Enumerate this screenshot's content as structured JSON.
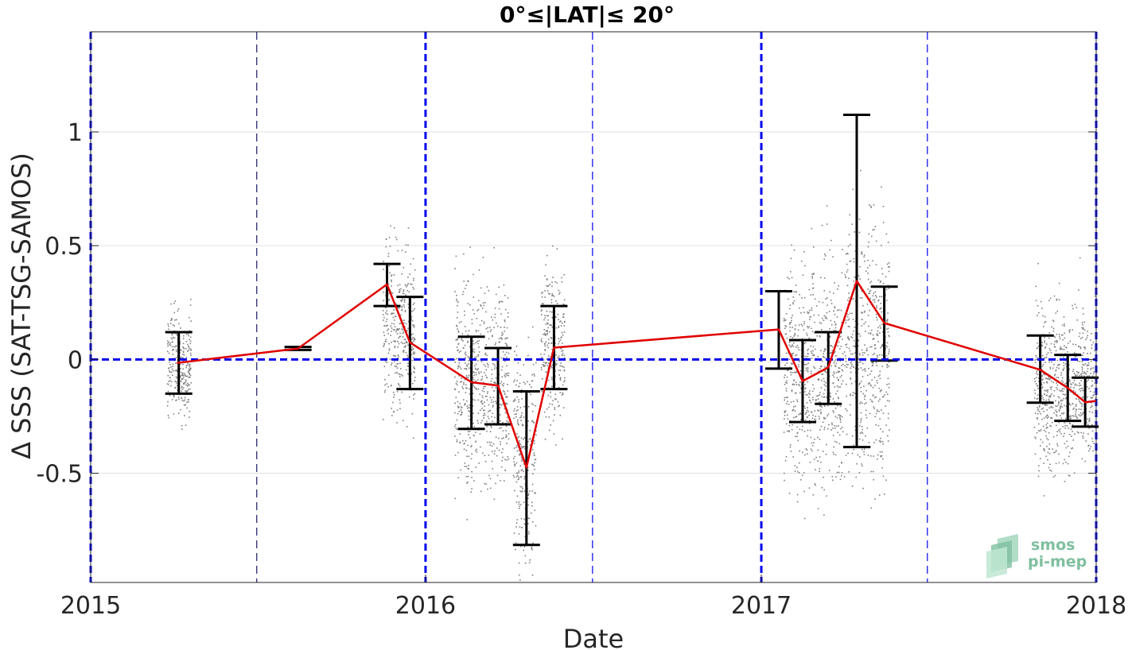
{
  "chart_data": {
    "type": "scatter",
    "title": "0°≤|LAT|≤ 20°",
    "xlabel": "Date",
    "ylabel": "Δ SSS (SAT-TSG-SAMOS)",
    "xlim": [
      "2015-01-01",
      "2018-01-01"
    ],
    "ylim": [
      -0.98,
      1.44
    ],
    "x_ticks": [
      "2015",
      "2016",
      "2017",
      "2018"
    ],
    "y_ticks": [
      -0.5,
      0,
      0.5,
      1
    ],
    "y_tick_labels": [
      "-0.5",
      "0",
      "0.5",
      "1"
    ],
    "grid": "horizontal",
    "zero_reference_line": 0,
    "year_boundaries": [
      "2015-01-01",
      "2016-01-01",
      "2017-01-01",
      "2018-01-01"
    ],
    "half_year_lines": [
      "2015-07-01",
      "2016-07-01",
      "2017-07-01"
    ],
    "monthly_mean": [
      {
        "date": "2015-04-05",
        "value": -0.015
      },
      {
        "date": "2015-08-15",
        "value": 0.048
      },
      {
        "date": "2015-11-20",
        "value": 0.33
      },
      {
        "date": "2015-12-15",
        "value": 0.075
      },
      {
        "date": "2016-02-20",
        "value": -0.1
      },
      {
        "date": "2016-03-20",
        "value": -0.115
      },
      {
        "date": "2016-04-20",
        "value": -0.475
      },
      {
        "date": "2016-05-20",
        "value": 0.052
      },
      {
        "date": "2017-01-20",
        "value": 0.132
      },
      {
        "date": "2017-02-15",
        "value": -0.095
      },
      {
        "date": "2017-03-15",
        "value": -0.035
      },
      {
        "date": "2017-04-15",
        "value": 0.345
      },
      {
        "date": "2017-05-15",
        "value": 0.16
      },
      {
        "date": "2017-11-01",
        "value": -0.045
      },
      {
        "date": "2017-12-01",
        "value": -0.125
      },
      {
        "date": "2017-12-20",
        "value": -0.188
      },
      {
        "date": "2018-01-01",
        "value": -0.182
      }
    ],
    "error_bars": [
      {
        "date": "2015-04-07",
        "low": -0.15,
        "high": 0.12
      },
      {
        "date": "2015-08-15",
        "low": 0.042,
        "high": 0.055
      },
      {
        "date": "2015-11-20",
        "low": 0.235,
        "high": 0.42
      },
      {
        "date": "2015-12-15",
        "low": -0.13,
        "high": 0.275
      },
      {
        "date": "2016-02-20",
        "low": -0.305,
        "high": 0.1
      },
      {
        "date": "2016-03-20",
        "low": -0.285,
        "high": 0.05
      },
      {
        "date": "2016-04-20",
        "low": -0.815,
        "high": -0.14
      },
      {
        "date": "2016-05-20",
        "low": -0.13,
        "high": 0.235
      },
      {
        "date": "2017-01-20",
        "low": -0.04,
        "high": 0.3
      },
      {
        "date": "2017-02-15",
        "low": -0.275,
        "high": 0.085
      },
      {
        "date": "2017-03-15",
        "low": -0.195,
        "high": 0.12
      },
      {
        "date": "2017-04-15",
        "low": -0.385,
        "high": 1.075
      },
      {
        "date": "2017-05-15",
        "low": -0.005,
        "high": 0.32
      },
      {
        "date": "2017-11-01",
        "low": -0.19,
        "high": 0.105
      },
      {
        "date": "2017-12-01",
        "low": -0.27,
        "high": 0.02
      },
      {
        "date": "2017-12-20",
        "low": -0.295,
        "high": -0.08
      }
    ],
    "raw_point_clusters": [
      {
        "start": "2015-03-25",
        "end": "2015-04-20",
        "center": -0.02,
        "spread": 0.38
      },
      {
        "start": "2015-11-15",
        "end": "2015-12-20",
        "center": 0.12,
        "spread": 0.62
      },
      {
        "start": "2016-02-01",
        "end": "2016-03-31",
        "center": -0.1,
        "spread": 0.75
      },
      {
        "start": "2016-04-05",
        "end": "2016-04-30",
        "center": -0.42,
        "spread": 0.8
      },
      {
        "start": "2016-05-05",
        "end": "2016-05-31",
        "center": 0.05,
        "spread": 0.58
      },
      {
        "start": "2017-01-25",
        "end": "2017-03-31",
        "center": -0.06,
        "spread": 0.85
      },
      {
        "start": "2017-04-01",
        "end": "2017-05-20",
        "center": 0.05,
        "spread": 0.95
      },
      {
        "start": "2017-10-25",
        "end": "2017-12-31",
        "center": -0.12,
        "spread": 0.6
      }
    ],
    "colors": {
      "points": "#808080",
      "mean_line": "#e00000",
      "error_bars": "#000000",
      "reference_lines": "#0000ee",
      "grid": "#e0e0e0"
    },
    "logo": {
      "line1": "smos",
      "line2": "pi-mep",
      "color": "#7fbf9f"
    }
  }
}
